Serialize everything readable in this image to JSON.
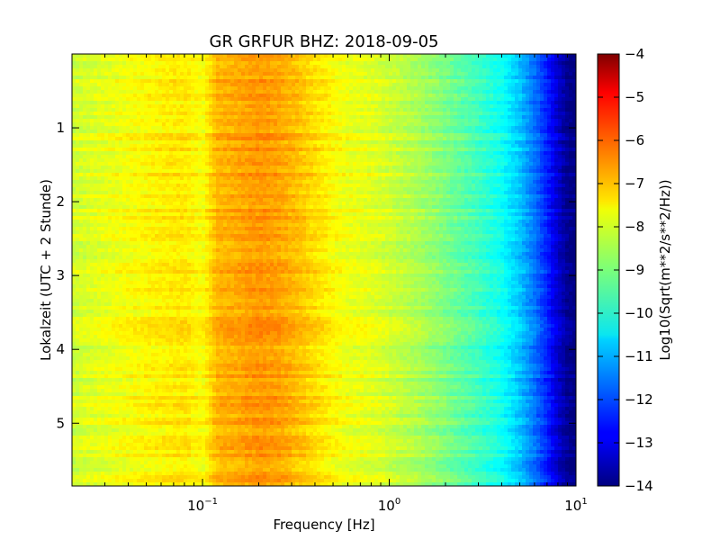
{
  "chart_data": {
    "type": "heatmap",
    "title": "GR GRFUR BHZ: 2018-09-05",
    "xlabel": "Frequency [Hz]",
    "ylabel": "Lokalzeit (UTC + 2 Stunde)",
    "x_scale": "log",
    "xlim": [
      0.02,
      10
    ],
    "ylim": [
      5.85,
      0.0
    ],
    "x_ticks": [
      {
        "base": "10",
        "exp": "−1",
        "value": 0.1
      },
      {
        "base": "10",
        "exp": "0",
        "value": 1
      },
      {
        "base": "10",
        "exp": "1",
        "value": 10
      }
    ],
    "y_ticks": [
      {
        "label": "1",
        "value": 1
      },
      {
        "label": "2",
        "value": 2
      },
      {
        "label": "3",
        "value": 3
      },
      {
        "label": "4",
        "value": 4
      },
      {
        "label": "5",
        "value": 5
      }
    ],
    "colorbar": {
      "label": "Log10(Sqrt(m**2/s**2/Hz))",
      "range": [
        -14,
        -4
      ],
      "ticks": [
        "−4",
        "−5",
        "−6",
        "−7",
        "−8",
        "−9",
        "−10",
        "−11",
        "−12",
        "−13",
        "−14"
      ],
      "colormap": "jet"
    },
    "frequency_profile": {
      "frequency_hz": [
        0.02,
        0.04,
        0.06,
        0.08,
        0.1,
        0.12,
        0.15,
        0.2,
        0.25,
        0.3,
        0.4,
        0.5,
        0.6,
        0.8,
        1.0,
        1.5,
        2.0,
        3.0,
        4.0,
        5.0,
        6.0,
        7.0,
        8.0,
        9.0,
        10.0
      ],
      "level": [
        -8.2,
        -7.8,
        -7.6,
        -7.5,
        -7.8,
        -7.0,
        -6.9,
        -6.7,
        -6.8,
        -7.0,
        -7.4,
        -7.7,
        -7.9,
        -8.0,
        -8.2,
        -8.6,
        -9.0,
        -9.6,
        -10.1,
        -10.8,
        -11.6,
        -12.4,
        -13.2,
        -13.8,
        -14.0
      ]
    }
  }
}
